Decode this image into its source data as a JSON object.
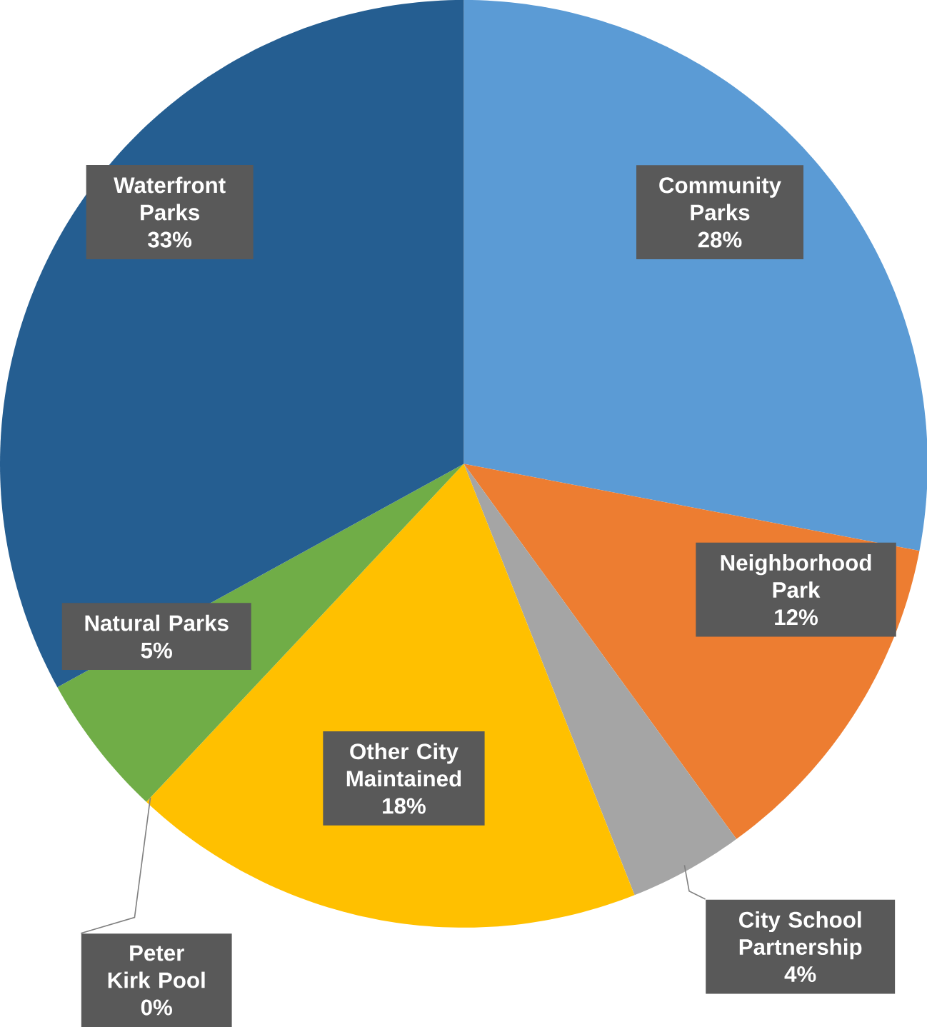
{
  "chart_data": {
    "type": "pie",
    "categories": [
      "Community Parks",
      "Neighborhood Park",
      "City School Partnership",
      "Other City Maintained",
      "Peter Kirk Pool",
      "Natural Parks",
      "Waterfront Parks"
    ],
    "values": [
      28,
      12,
      4,
      18,
      0,
      5,
      33
    ],
    "value_labels": [
      "28%",
      "12%",
      "4%",
      "18%",
      "0%",
      "5%",
      "33%"
    ],
    "colors": [
      "#5b9bd5",
      "#ed7d31",
      "#a5a5a5",
      "#ffc000",
      "#4472c4",
      "#70ad47",
      "#255e91"
    ]
  }
}
